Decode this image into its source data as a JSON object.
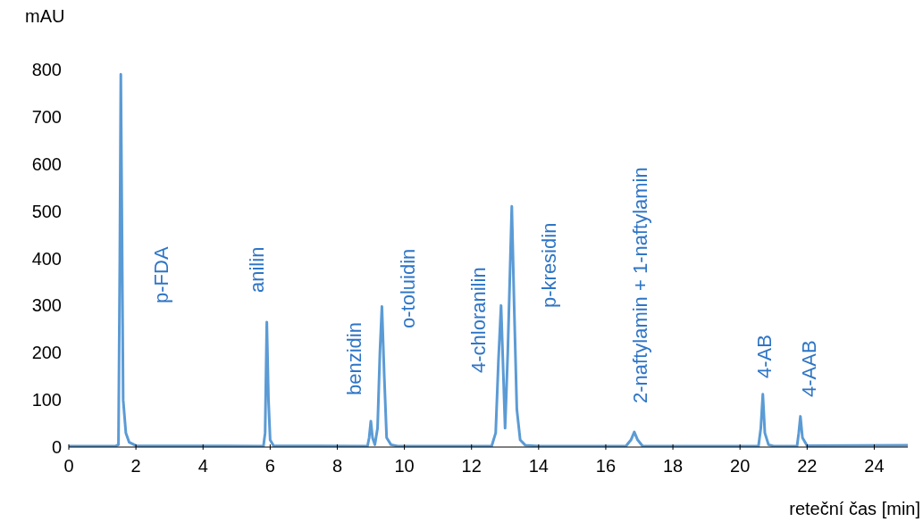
{
  "chart_data": {
    "type": "line",
    "xlabel": "reteční čas [min]",
    "ylabel": "mAU",
    "xlim": [
      0,
      25
    ],
    "xticks": [
      0,
      2,
      4,
      6,
      8,
      10,
      12,
      14,
      16,
      18,
      20,
      22,
      24
    ],
    "ylim": [
      0,
      800
    ],
    "yticks": [
      0,
      100,
      200,
      300,
      400,
      500,
      600,
      700,
      800
    ],
    "grid": false,
    "legend": false,
    "marker": "none",
    "line_style": "solid",
    "series": [
      {
        "color": "#5b9bd5",
        "x": [
          0,
          1.4,
          1.48,
          1.52,
          1.55,
          1.58,
          1.62,
          1.7,
          1.8,
          2.0,
          5.8,
          5.85,
          5.9,
          5.95,
          6.0,
          6.1,
          8.9,
          8.95,
          9.0,
          9.05,
          9.12,
          9.2,
          9.27,
          9.33,
          9.4,
          9.47,
          9.6,
          9.8,
          12.6,
          12.72,
          12.8,
          12.88,
          12.95,
          13.0,
          13.08,
          13.2,
          13.27,
          13.35,
          13.45,
          13.6,
          14,
          16.6,
          16.75,
          16.85,
          16.95,
          17.1,
          20.55,
          20.62,
          20.68,
          20.74,
          20.85,
          21.0,
          21.7,
          21.75,
          21.8,
          21.86,
          22.0,
          25
        ],
        "values": [
          2,
          2,
          5,
          400,
          790,
          500,
          100,
          30,
          10,
          3,
          2,
          30,
          265,
          100,
          15,
          3,
          2,
          20,
          55,
          20,
          5,
          40,
          200,
          298,
          150,
          20,
          5,
          2,
          2,
          30,
          180,
          300,
          150,
          40,
          200,
          510,
          300,
          80,
          15,
          4,
          2,
          2,
          15,
          32,
          15,
          2,
          2,
          40,
          112,
          30,
          5,
          2,
          2,
          30,
          65,
          20,
          3,
          4
        ]
      }
    ],
    "annotations": [
      "p-FDA",
      "anilin",
      "benzidin",
      "o-toluidin",
      "4-chloranilin",
      "p-kresidin",
      "2-naftylamin + 1-naftylamin",
      "4-AB",
      "4-AAB"
    ]
  }
}
